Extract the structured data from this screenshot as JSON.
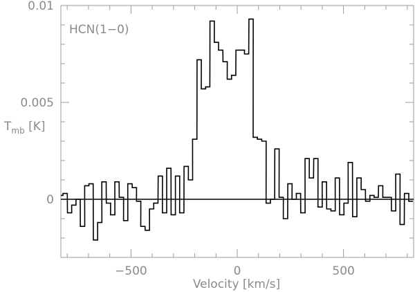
{
  "chart_data": {
    "type": "line",
    "step": true,
    "title": "",
    "annotation": "HCN(1−0)",
    "xlabel": "Velocity [km/s]",
    "ylabel_main": "T",
    "ylabel_sub": "mb",
    "ylabel_unit": " [K]",
    "xlim": [
      -830,
      830
    ],
    "ylim": [
      -0.003,
      0.01
    ],
    "grid": false,
    "x_ticks": [
      {
        "value": -500,
        "label": "−500"
      },
      {
        "value": 0,
        "label": "0"
      },
      {
        "value": 500,
        "label": "500"
      }
    ],
    "y_ticks": [
      {
        "value": 0,
        "label": "0"
      },
      {
        "value": 0.005,
        "label": "0.005"
      },
      {
        "value": 0.01,
        "label": "0.01"
      }
    ],
    "channel_width": 20.3,
    "series": [
      {
        "x": [
          -830,
          -810,
          -789,
          -769,
          -749,
          -728,
          -708,
          -688,
          -667,
          -647,
          -627,
          -606,
          -586,
          -566,
          -545,
          -525,
          -505,
          -484,
          -464,
          -444,
          -423,
          -403,
          -383,
          -362,
          -342,
          -322,
          -301,
          -281,
          -261,
          -240,
          -220,
          -200,
          -179,
          -159,
          -139,
          -118,
          -98,
          -78,
          -57,
          -37,
          -17,
          4,
          24,
          44,
          65,
          85,
          105,
          126,
          146,
          166,
          187,
          207,
          227,
          248,
          268,
          288,
          309,
          329,
          349,
          370,
          390,
          410,
          431,
          451,
          471,
          492,
          512,
          532,
          553,
          573,
          593,
          614,
          634,
          654,
          675,
          695,
          715,
          736,
          756,
          776,
          797,
          817
        ],
        "y": [
          0.0002,
          0.0003,
          -0.0007,
          -0.0003,
          0,
          -0.0014,
          0.0007,
          0.0008,
          -0.0021,
          -0.0012,
          0.0009,
          -0.0002,
          -0.0008,
          0.0009,
          0.0001,
          -0.0011,
          0.0008,
          0.0006,
          -0.0001,
          -0.0014,
          -0.0016,
          -0.0005,
          -0.0002,
          0.0012,
          -0.0007,
          0.0016,
          -0.0008,
          0.0012,
          -0.0007,
          0.0017,
          0.001,
          0.0031,
          0.0072,
          0.0057,
          0.0058,
          0.0092,
          0.0081,
          0.0077,
          0.0071,
          0.0062,
          0.0064,
          0.0077,
          0.0077,
          0.0075,
          0.0093,
          0.0032,
          0.0031,
          0.003,
          -0.0002,
          0,
          0.0026,
          0.0001,
          -0.001,
          0.0008,
          0,
          0.0003,
          -0.0007,
          0.0021,
          0.0011,
          0.0021,
          -0.0004,
          0.0009,
          -0.0005,
          -0.0006,
          0.0011,
          -0.0008,
          -0.0002,
          0.0019,
          -0.0009,
          0.0011,
          0.0005,
          -0.0001,
          0.0002,
          0.0001,
          0.0007,
          0.0001,
          0.0001,
          -0.0006,
          0.0013,
          -0.0013,
          0.0003,
          -0.0001
        ]
      }
    ]
  }
}
